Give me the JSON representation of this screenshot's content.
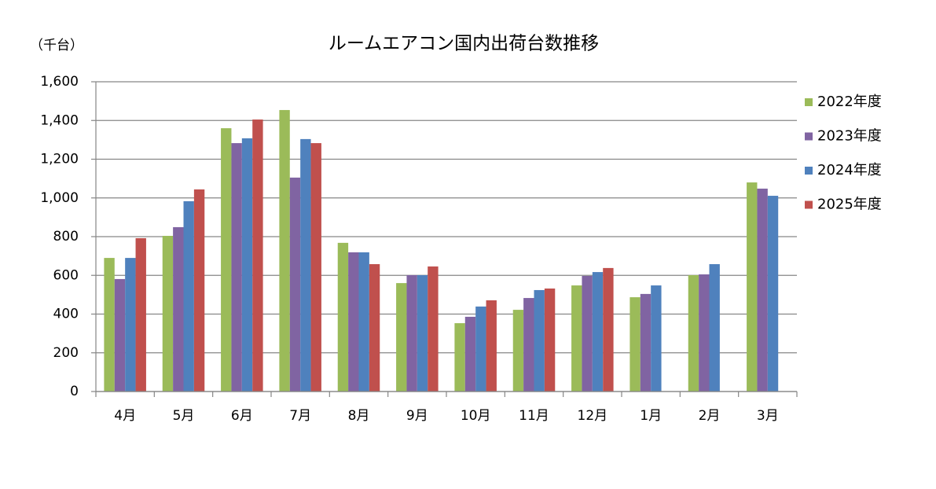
{
  "chart_data": {
    "type": "bar",
    "title": "ルームエアコン国内出荷台数推移",
    "y_label": "（千台）",
    "categories": [
      "4月",
      "5月",
      "6月",
      "7月",
      "8月",
      "9月",
      "10月",
      "11月",
      "12月",
      "1月",
      "2月",
      "3月"
    ],
    "series": [
      {
        "name": "2022年度",
        "color": "#9bbb59",
        "values": [
          690,
          804,
          1360,
          1454,
          768,
          560,
          353,
          422,
          548,
          487,
          601,
          1080
        ]
      },
      {
        "name": "2023年度",
        "color": "#8064a2",
        "values": [
          581,
          849,
          1283,
          1105,
          719,
          601,
          386,
          483,
          597,
          504,
          605,
          1048
        ]
      },
      {
        "name": "2024年度",
        "color": "#4f81bd",
        "values": [
          690,
          983,
          1308,
          1304,
          719,
          601,
          439,
          524,
          617,
          548,
          658,
          1011
        ]
      },
      {
        "name": "2025年度",
        "color": "#c0504d",
        "values": [
          792,
          1044,
          1405,
          1283,
          658,
          646,
          471,
          532,
          638,
          null,
          null,
          null
        ]
      }
    ],
    "ylim": [
      0,
      1600
    ],
    "yticks": [
      0,
      200,
      400,
      600,
      800,
      {
        "value": 1000,
        "label": "1,000"
      },
      {
        "value": 1200,
        "label": "1,200"
      },
      {
        "value": 1400,
        "label": "1,400"
      },
      {
        "value": 1600,
        "label": "1,600"
      }
    ],
    "grid": true,
    "legend": "right"
  }
}
